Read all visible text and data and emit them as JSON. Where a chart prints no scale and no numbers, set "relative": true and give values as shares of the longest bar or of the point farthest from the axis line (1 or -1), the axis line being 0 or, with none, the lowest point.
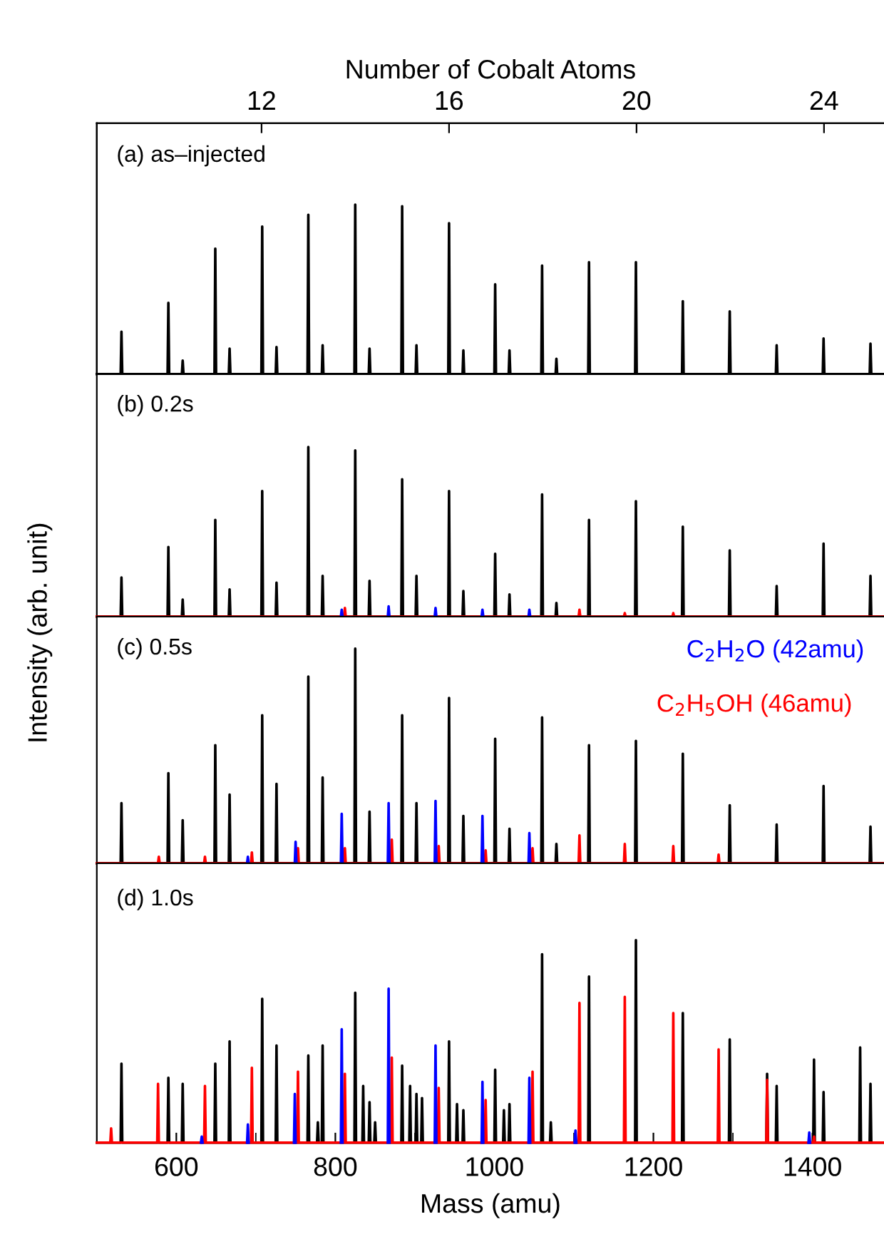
{
  "chart_data": [
    {
      "type": "line",
      "relative": true,
      "ylabel": "Intensity (arb. unit)",
      "x2label": "Number of Cobalt Atoms",
      "xlim": [
        500,
        1490
      ],
      "x2lim": [
        8.485,
        25.28
      ],
      "x2ticks": [
        12,
        16,
        20,
        24
      ],
      "tick_labels": false,
      "annotations": [
        "(a) as–injected"
      ],
      "series": [
        {
          "color": "#000000",
          "x": [
            500,
            530,
            531,
            532,
            589,
            590,
            591,
            607,
            608,
            609,
            648,
            649,
            650,
            666,
            667,
            668,
            707,
            708,
            709,
            725,
            726,
            727,
            765,
            766,
            767,
            783,
            784,
            785,
            824,
            825,
            826,
            842,
            843,
            844,
            883,
            884,
            885,
            901,
            902,
            903,
            942,
            943,
            944,
            960,
            961,
            962,
            1000,
            1001,
            1002,
            1018,
            1019,
            1020,
            1059,
            1060,
            1061,
            1077,
            1078,
            1079,
            1118,
            1119,
            1120,
            1177,
            1178,
            1179,
            1236,
            1237,
            1238,
            1295,
            1296,
            1297,
            1354,
            1355,
            1356,
            1413,
            1414,
            1415,
            1472,
            1473,
            1474,
            1490
          ],
          "values": [
            0,
            0,
            0.25,
            0,
            0,
            0.42,
            0,
            0,
            0.08,
            0,
            0,
            0.74,
            0,
            0,
            0.15,
            0,
            0,
            0.87,
            0,
            0,
            0.16,
            0,
            0,
            0.94,
            0,
            0,
            0.17,
            0,
            0,
            1,
            0,
            0,
            0.15,
            0,
            0,
            0.99,
            0,
            0,
            0.17,
            0,
            0,
            0.89,
            0,
            0,
            0.14,
            0,
            0,
            0.53,
            0,
            0,
            0.14,
            0,
            0,
            0.64,
            0,
            0,
            0.09,
            0,
            0,
            0.66,
            0,
            0,
            0.66,
            0,
            0,
            0.43,
            0,
            0,
            0.37,
            0,
            0,
            0.17,
            0,
            0,
            0.21,
            0,
            0,
            0.18,
            0,
            0
          ]
        }
      ]
    },
    {
      "type": "line",
      "relative": true,
      "xlim": [
        500,
        1490
      ],
      "tick_labels": false,
      "annotations": [
        "(b) 0.2s"
      ],
      "series": [
        {
          "color": "#000000",
          "x": [
            500,
            530,
            531,
            532,
            589,
            590,
            591,
            607,
            608,
            609,
            648,
            649,
            650,
            666,
            667,
            668,
            707,
            708,
            709,
            725,
            726,
            727,
            765,
            766,
            767,
            783,
            784,
            785,
            824,
            825,
            826,
            842,
            843,
            844,
            883,
            884,
            885,
            901,
            902,
            903,
            942,
            943,
            944,
            960,
            961,
            962,
            1000,
            1001,
            1002,
            1018,
            1019,
            1020,
            1059,
            1060,
            1061,
            1077,
            1078,
            1079,
            1118,
            1119,
            1120,
            1177,
            1178,
            1179,
            1236,
            1237,
            1238,
            1295,
            1296,
            1297,
            1354,
            1355,
            1356,
            1413,
            1414,
            1415,
            1472,
            1473,
            1474,
            1490
          ],
          "values": [
            0,
            0,
            0.23,
            0,
            0,
            0.41,
            0,
            0,
            0.1,
            0,
            0,
            0.57,
            0,
            0,
            0.16,
            0,
            0,
            0.74,
            0,
            0,
            0.2,
            0,
            0,
            1,
            0,
            0,
            0.24,
            0,
            0,
            0.98,
            0,
            0,
            0.21,
            0,
            0,
            0.81,
            0,
            0,
            0.24,
            0,
            0,
            0.74,
            0,
            0,
            0.15,
            0,
            0,
            0.37,
            0,
            0,
            0.13,
            0,
            0,
            0.72,
            0,
            0,
            0.08,
            0,
            0,
            0.57,
            0,
            0,
            0.68,
            0,
            0,
            0.53,
            0,
            0,
            0.39,
            0,
            0,
            0.18,
            0,
            0,
            0.43,
            0,
            0,
            0.24,
            0,
            0
          ]
        },
        {
          "color": "#0000ff",
          "x": [
            807,
            808,
            809,
            840,
            866,
            867,
            868,
            900,
            925,
            926,
            927,
            960,
            984,
            985,
            986,
            1020,
            1043,
            1044,
            1045
          ],
          "values": [
            0,
            0.04,
            0,
            null,
            0,
            0.06,
            0,
            null,
            0,
            0.05,
            0,
            null,
            0,
            0.04,
            0,
            null,
            0,
            0.04,
            0
          ]
        },
        {
          "color": "#ff0000",
          "x": [
            500,
            811,
            812,
            813,
            1106,
            1107,
            1108,
            1163,
            1164,
            1165,
            1224,
            1225,
            1226,
            1490
          ],
          "values": [
            0,
            0,
            0.05,
            0,
            0,
            0.04,
            0,
            0,
            0.02,
            0,
            0,
            0.02,
            0,
            0
          ]
        }
      ]
    },
    {
      "type": "line",
      "relative": true,
      "xlim": [
        500,
        1490
      ],
      "tick_labels": false,
      "annotations": [
        "(c) 0.5s"
      ],
      "series": [
        {
          "color": "#000000",
          "x": [
            500,
            530,
            531,
            532,
            589,
            590,
            591,
            607,
            608,
            609,
            648,
            649,
            650,
            666,
            667,
            668,
            707,
            708,
            709,
            725,
            726,
            727,
            765,
            766,
            767,
            783,
            784,
            785,
            824,
            825,
            826,
            842,
            843,
            844,
            883,
            884,
            885,
            901,
            902,
            903,
            942,
            943,
            944,
            960,
            961,
            962,
            1000,
            1001,
            1002,
            1018,
            1019,
            1020,
            1059,
            1060,
            1061,
            1077,
            1078,
            1079,
            1118,
            1119,
            1120,
            1177,
            1178,
            1179,
            1236,
            1237,
            1238,
            1295,
            1296,
            1297,
            1354,
            1355,
            1356,
            1413,
            1414,
            1415,
            1472,
            1473,
            1474,
            1490
          ],
          "values": [
            0,
            0,
            0.28,
            0,
            0,
            0.42,
            0,
            0,
            0.2,
            0,
            0,
            0.55,
            0,
            0,
            0.32,
            0,
            0,
            0.69,
            0,
            0,
            0.37,
            0,
            0,
            0.87,
            0,
            0,
            0.4,
            0,
            0,
            1,
            0,
            0,
            0.24,
            0,
            0,
            0.69,
            0,
            0,
            0.28,
            0,
            0,
            0.77,
            0,
            0,
            0.22,
            0,
            0,
            0.58,
            0,
            0,
            0.16,
            0,
            0,
            0.68,
            0,
            0,
            0.09,
            0,
            0,
            0.55,
            0,
            0,
            0.57,
            0,
            0,
            0.51,
            0,
            0,
            0.27,
            0,
            0,
            0.18,
            0,
            0,
            0.36,
            0,
            0,
            0.17,
            0,
            0
          ]
        },
        {
          "name": "C$_{2}$H$_{2}$O (42amu)",
          "color": "#0000ff",
          "x": [
            689,
            690,
            691,
            720,
            749,
            750,
            751,
            780,
            807,
            808,
            809,
            840,
            866,
            867,
            868,
            900,
            925,
            926,
            927,
            960,
            984,
            985,
            986,
            1020,
            1043,
            1044,
            1045
          ],
          "values": [
            0,
            0.03,
            0,
            null,
            0,
            0.1,
            0,
            null,
            0,
            0.23,
            0,
            null,
            0,
            0.28,
            0,
            null,
            0,
            0.29,
            0,
            null,
            0,
            0.22,
            0,
            null,
            0,
            0.14,
            0
          ]
        },
        {
          "name": "C$_{2}$H$_{5}$OH (46amu)",
          "color": "#ff0000",
          "x": [
            500,
            577,
            578,
            579,
            635,
            636,
            637,
            694,
            695,
            696,
            752,
            753,
            754,
            811,
            812,
            813,
            870,
            871,
            872,
            929,
            930,
            931,
            988,
            989,
            990,
            1047,
            1048,
            1049,
            1106,
            1107,
            1108,
            1163,
            1164,
            1165,
            1224,
            1225,
            1226,
            1281,
            1282,
            1283,
            1490
          ],
          "values": [
            0,
            0,
            0.03,
            0,
            0,
            0.03,
            0,
            0,
            0.05,
            0,
            0,
            0.07,
            0,
            0,
            0.07,
            0,
            0,
            0.11,
            0,
            0,
            0.08,
            0,
            0,
            0.06,
            0,
            0,
            0.07,
            0,
            0,
            0.13,
            0,
            0,
            0.09,
            0,
            0,
            0.08,
            0,
            0,
            0.04,
            0,
            0
          ]
        }
      ]
    },
    {
      "type": "line",
      "relative": true,
      "xlabel": "Mass (amu)",
      "xlim": [
        500,
        1490
      ],
      "xticks": [
        600,
        {
          "value": 700,
          "label": null
        },
        800,
        {
          "value": 900,
          "label": null
        },
        1000,
        {
          "value": 1100,
          "label": null
        },
        1200,
        {
          "value": 1300,
          "label": null
        },
        1400
      ],
      "tick_labels": "x",
      "annotations": [
        "(d) 1.0s"
      ],
      "series": [
        {
          "color": "#000000",
          "x": [
            500,
            530,
            531,
            532,
            589,
            590,
            591,
            607,
            608,
            609,
            648,
            649,
            650,
            666,
            667,
            668,
            707,
            708,
            709,
            725,
            726,
            727,
            765,
            766,
            767,
            777,
            778,
            779,
            783,
            784,
            785,
            824,
            825,
            826,
            834,
            835,
            836,
            842,
            843,
            844,
            849,
            850,
            851,
            883,
            884,
            885,
            893,
            894,
            895,
            901,
            902,
            903,
            908,
            909,
            910,
            942,
            943,
            944,
            952,
            953,
            954,
            960,
            961,
            962,
            1000,
            1001,
            1002,
            1011,
            1012,
            1013,
            1018,
            1019,
            1020,
            1059,
            1060,
            1061,
            1070,
            1071,
            1072,
            1118,
            1119,
            1120,
            1177,
            1178,
            1179,
            1236,
            1237,
            1238,
            1295,
            1296,
            1297,
            1342,
            1343,
            1344,
            1354,
            1355,
            1356,
            1401,
            1402,
            1403,
            1413,
            1414,
            1415,
            1459,
            1460,
            1461,
            1472,
            1473,
            1474,
            1490
          ],
          "values": [
            0,
            0,
            0.39,
            0,
            0,
            0.32,
            0,
            0,
            0.29,
            0,
            0,
            0.39,
            0,
            0,
            0.5,
            0,
            0,
            0.71,
            0,
            0,
            0.48,
            0,
            0,
            0.43,
            0,
            0,
            0.1,
            0,
            0,
            0.48,
            0,
            0,
            0.74,
            0,
            0,
            0.28,
            0,
            0,
            0.2,
            0,
            0,
            0.1,
            0,
            0,
            0.38,
            0,
            0,
            0.28,
            0,
            0,
            0.24,
            0,
            0,
            0.22,
            0,
            0,
            0.5,
            0,
            0,
            0.19,
            0,
            0,
            0.16,
            0,
            0,
            0.36,
            0,
            0,
            0.16,
            0,
            0,
            0.19,
            0,
            0,
            0.93,
            0,
            0,
            0.1,
            0,
            0,
            0.82,
            0,
            0,
            1,
            0,
            0,
            0.64,
            0,
            0,
            0.51,
            0,
            0,
            0.34,
            0,
            0,
            0.28,
            0,
            0,
            0.41,
            0,
            0,
            0.25,
            0,
            0,
            0.47,
            0,
            0,
            0.29,
            0,
            0
          ]
        },
        {
          "color": "#0000ff",
          "x": [
            631,
            632,
            633,
            660,
            689,
            690,
            691,
            720,
            748,
            749,
            750,
            780,
            807,
            808,
            809,
            840,
            866,
            867,
            868,
            900,
            925,
            926,
            927,
            960,
            984,
            985,
            986,
            1020,
            1043,
            1044,
            1045,
            1075,
            1101,
            1102,
            1103,
            1250,
            1395,
            1396,
            1397
          ],
          "values": [
            0,
            0.03,
            0,
            null,
            0,
            0.09,
            0,
            null,
            0,
            0.24,
            0,
            null,
            0,
            0.56,
            0,
            null,
            0,
            0.76,
            0,
            null,
            0,
            0.48,
            0,
            null,
            0,
            0.3,
            0,
            null,
            0,
            0.32,
            0,
            null,
            0,
            0.06,
            0,
            null,
            0,
            0.05,
            0
          ]
        },
        {
          "color": "#ff0000",
          "x": [
            500,
            517,
            518,
            519,
            576,
            577,
            578,
            635,
            636,
            637,
            694,
            695,
            696,
            752,
            753,
            754,
            811,
            812,
            813,
            870,
            871,
            872,
            929,
            930,
            931,
            988,
            989,
            990,
            1047,
            1048,
            1049,
            1106,
            1107,
            1108,
            1163,
            1164,
            1165,
            1224,
            1225,
            1226,
            1281,
            1282,
            1283,
            1342,
            1343,
            1344,
            1401,
            1402,
            1403,
            1490
          ],
          "values": [
            0,
            0,
            0.07,
            0,
            0,
            0.29,
            0,
            0,
            0.28,
            0,
            0,
            0.37,
            0,
            0,
            0.35,
            0,
            0,
            0.34,
            0,
            0,
            0.42,
            0,
            0,
            0.27,
            0,
            0,
            0.21,
            0,
            0,
            0.35,
            0,
            0,
            0.69,
            0,
            0,
            0.72,
            0,
            0,
            0.64,
            0,
            0,
            0.46,
            0,
            0,
            0.31,
            0,
            0,
            0.03,
            0,
            0
          ]
        }
      ]
    }
  ]
}
